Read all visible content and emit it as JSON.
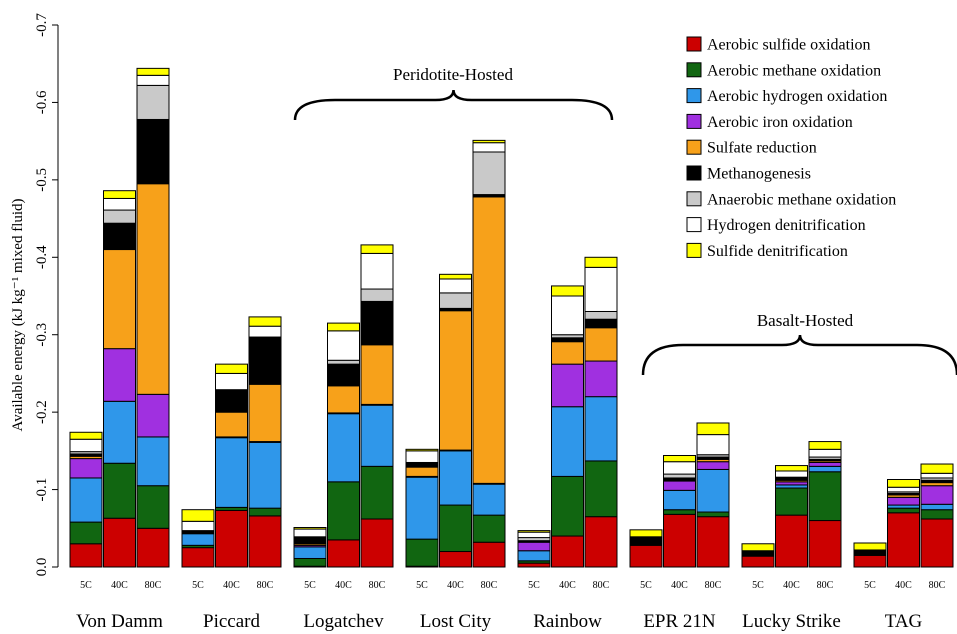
{
  "chart_data": {
    "type": "bar",
    "stacked": true,
    "y_axis_reversed": true,
    "ylabel": "Available energy (kJ kg⁻¹ mixed fluid)",
    "ylim": [
      0,
      -0.7
    ],
    "yticks": [
      "0.0",
      "-0.1",
      "-0.2",
      "-0.3",
      "-0.4",
      "-0.5",
      "-0.6",
      "-0.7"
    ],
    "yticks_values": [
      0,
      -0.1,
      -0.2,
      -0.3,
      -0.4,
      -0.5,
      -0.6,
      -0.7
    ],
    "sites": [
      "Von Damm",
      "Piccard",
      "Logatchev",
      "Lost City",
      "Rainbow",
      "EPR 21N",
      "Lucky Strike",
      "TAG"
    ],
    "temperatures": [
      "5C",
      "40C",
      "80C"
    ],
    "annotations": [
      {
        "text": "Peridotite-Hosted",
        "spans_sites": [
          "Logatchev",
          "Lost City",
          "Rainbow"
        ]
      },
      {
        "text": "Basalt-Hosted",
        "spans_sites": [
          "EPR 21N",
          "Lucky Strike",
          "TAG"
        ]
      }
    ],
    "legend_position": "top-right",
    "series": [
      {
        "name": "Aerobic sulfide oxidation",
        "color": "#cc0000"
      },
      {
        "name": "Aerobic methane oxidation",
        "color": "#116611"
      },
      {
        "name": "Aerobic hydrogen oxidation",
        "color": "#2f97ea"
      },
      {
        "name": "Aerobic iron oxidation",
        "color": "#a030e0"
      },
      {
        "name": "Sulfate reduction",
        "color": "#f7a11a"
      },
      {
        "name": "Methanogenesis",
        "color": "#000000"
      },
      {
        "name": "Anaerobic methane oxidation",
        "color": "#c9c9c9"
      },
      {
        "name": "Hydrogen denitrification",
        "color": "#ffffff"
      },
      {
        "name": "Sulfide denitrification",
        "color": "#ffff00"
      }
    ],
    "bars": [
      {
        "site": "Von Damm",
        "temp": "5C",
        "values": [
          -0.03,
          -0.028,
          -0.057,
          -0.025,
          -0.003,
          -0.003,
          -0.003,
          -0.016,
          -0.009
        ]
      },
      {
        "site": "Von Damm",
        "temp": "40C",
        "values": [
          -0.063,
          -0.071,
          -0.08,
          -0.068,
          -0.128,
          -0.034,
          -0.017,
          -0.015,
          -0.01
        ]
      },
      {
        "site": "Von Damm",
        "temp": "80C",
        "values": [
          -0.05,
          -0.055,
          -0.063,
          -0.055,
          -0.272,
          -0.083,
          -0.044,
          -0.013,
          -0.009
        ]
      },
      {
        "site": "Piccard",
        "temp": "5C",
        "values": [
          -0.025,
          -0.003,
          -0.015,
          -0.001,
          -0.001,
          -0.001,
          -0.001,
          -0.012,
          -0.015
        ]
      },
      {
        "site": "Piccard",
        "temp": "40C",
        "values": [
          -0.073,
          -0.004,
          -0.09,
          -0.001,
          -0.032,
          -0.028,
          -0.001,
          -0.021,
          -0.012
        ]
      },
      {
        "site": "Piccard",
        "temp": "80C",
        "values": [
          -0.066,
          -0.01,
          -0.085,
          -0.001,
          -0.074,
          -0.06,
          -0.001,
          -0.014,
          -0.012
        ]
      },
      {
        "site": "Logatchev",
        "temp": "5C",
        "values": [
          -0.001,
          -0.01,
          -0.015,
          -0.002,
          -0.002,
          -0.008,
          -0.001,
          -0.01,
          -0.002
        ]
      },
      {
        "site": "Logatchev",
        "temp": "40C",
        "values": [
          -0.035,
          -0.075,
          -0.088,
          -0.001,
          -0.035,
          -0.028,
          -0.005,
          -0.038,
          -0.01
        ]
      },
      {
        "site": "Logatchev",
        "temp": "80C",
        "values": [
          -0.062,
          -0.068,
          -0.079,
          -0.001,
          -0.077,
          -0.056,
          -0.016,
          -0.046,
          -0.011
        ]
      },
      {
        "site": "Lost City",
        "temp": "5C",
        "values": [
          -0.001,
          -0.035,
          -0.08,
          -0.001,
          -0.012,
          -0.005,
          -0.001,
          -0.015,
          -0.002
        ]
      },
      {
        "site": "Lost City",
        "temp": "40C",
        "values": [
          -0.02,
          -0.06,
          -0.07,
          -0.001,
          -0.18,
          -0.003,
          -0.02,
          -0.018,
          -0.006
        ]
      },
      {
        "site": "Lost City",
        "temp": "80C",
        "values": [
          -0.032,
          -0.035,
          -0.04,
          -0.001,
          -0.37,
          -0.003,
          -0.055,
          -0.012,
          -0.003
        ]
      },
      {
        "site": "Rainbow",
        "temp": "5C",
        "values": [
          -0.005,
          -0.003,
          -0.013,
          -0.011,
          -0.001,
          -0.001,
          -0.004,
          -0.007,
          -0.002
        ]
      },
      {
        "site": "Rainbow",
        "temp": "40C",
        "values": [
          -0.04,
          -0.077,
          -0.09,
          -0.055,
          -0.029,
          -0.005,
          -0.004,
          -0.05,
          -0.013
        ]
      },
      {
        "site": "Rainbow",
        "temp": "80C",
        "values": [
          -0.065,
          -0.072,
          -0.083,
          -0.046,
          -0.043,
          -0.011,
          -0.01,
          -0.057,
          -0.013
        ]
      },
      {
        "site": "EPR 21N",
        "temp": "5C",
        "values": [
          -0.028,
          -0.001,
          -0.001,
          -0.001,
          -0.001,
          -0.005,
          -0.001,
          -0.001,
          -0.009
        ]
      },
      {
        "site": "EPR 21N",
        "temp": "40C",
        "values": [
          -0.068,
          -0.006,
          -0.025,
          -0.012,
          -0.001,
          -0.003,
          -0.005,
          -0.016,
          -0.008
        ]
      },
      {
        "site": "EPR 21N",
        "temp": "80C",
        "values": [
          -0.065,
          -0.006,
          -0.055,
          -0.01,
          -0.003,
          -0.003,
          -0.003,
          -0.026,
          -0.015
        ]
      },
      {
        "site": "Lucky Strike",
        "temp": "5C",
        "values": [
          -0.014,
          -0.001,
          -0.001,
          -0.001,
          -0.001,
          -0.001,
          -0.001,
          -0.001,
          -0.009
        ]
      },
      {
        "site": "Lucky Strike",
        "temp": "40C",
        "values": [
          -0.067,
          -0.035,
          -0.004,
          -0.004,
          -0.002,
          -0.003,
          -0.001,
          -0.008,
          -0.007
        ]
      },
      {
        "site": "Lucky Strike",
        "temp": "80C",
        "values": [
          -0.06,
          -0.063,
          -0.007,
          -0.005,
          -0.002,
          -0.002,
          -0.003,
          -0.01,
          -0.01
        ]
      },
      {
        "site": "TAG",
        "temp": "5C",
        "values": [
          -0.015,
          -0.001,
          -0.001,
          -0.001,
          -0.001,
          -0.001,
          -0.001,
          -0.001,
          -0.009
        ]
      },
      {
        "site": "TAG",
        "temp": "40C",
        "values": [
          -0.07,
          -0.006,
          -0.004,
          -0.01,
          -0.003,
          -0.002,
          -0.002,
          -0.006,
          -0.01
        ]
      },
      {
        "site": "TAG",
        "temp": "80C",
        "values": [
          -0.062,
          -0.012,
          -0.007,
          -0.024,
          -0.004,
          -0.003,
          -0.003,
          -0.006,
          -0.012
        ]
      }
    ]
  }
}
